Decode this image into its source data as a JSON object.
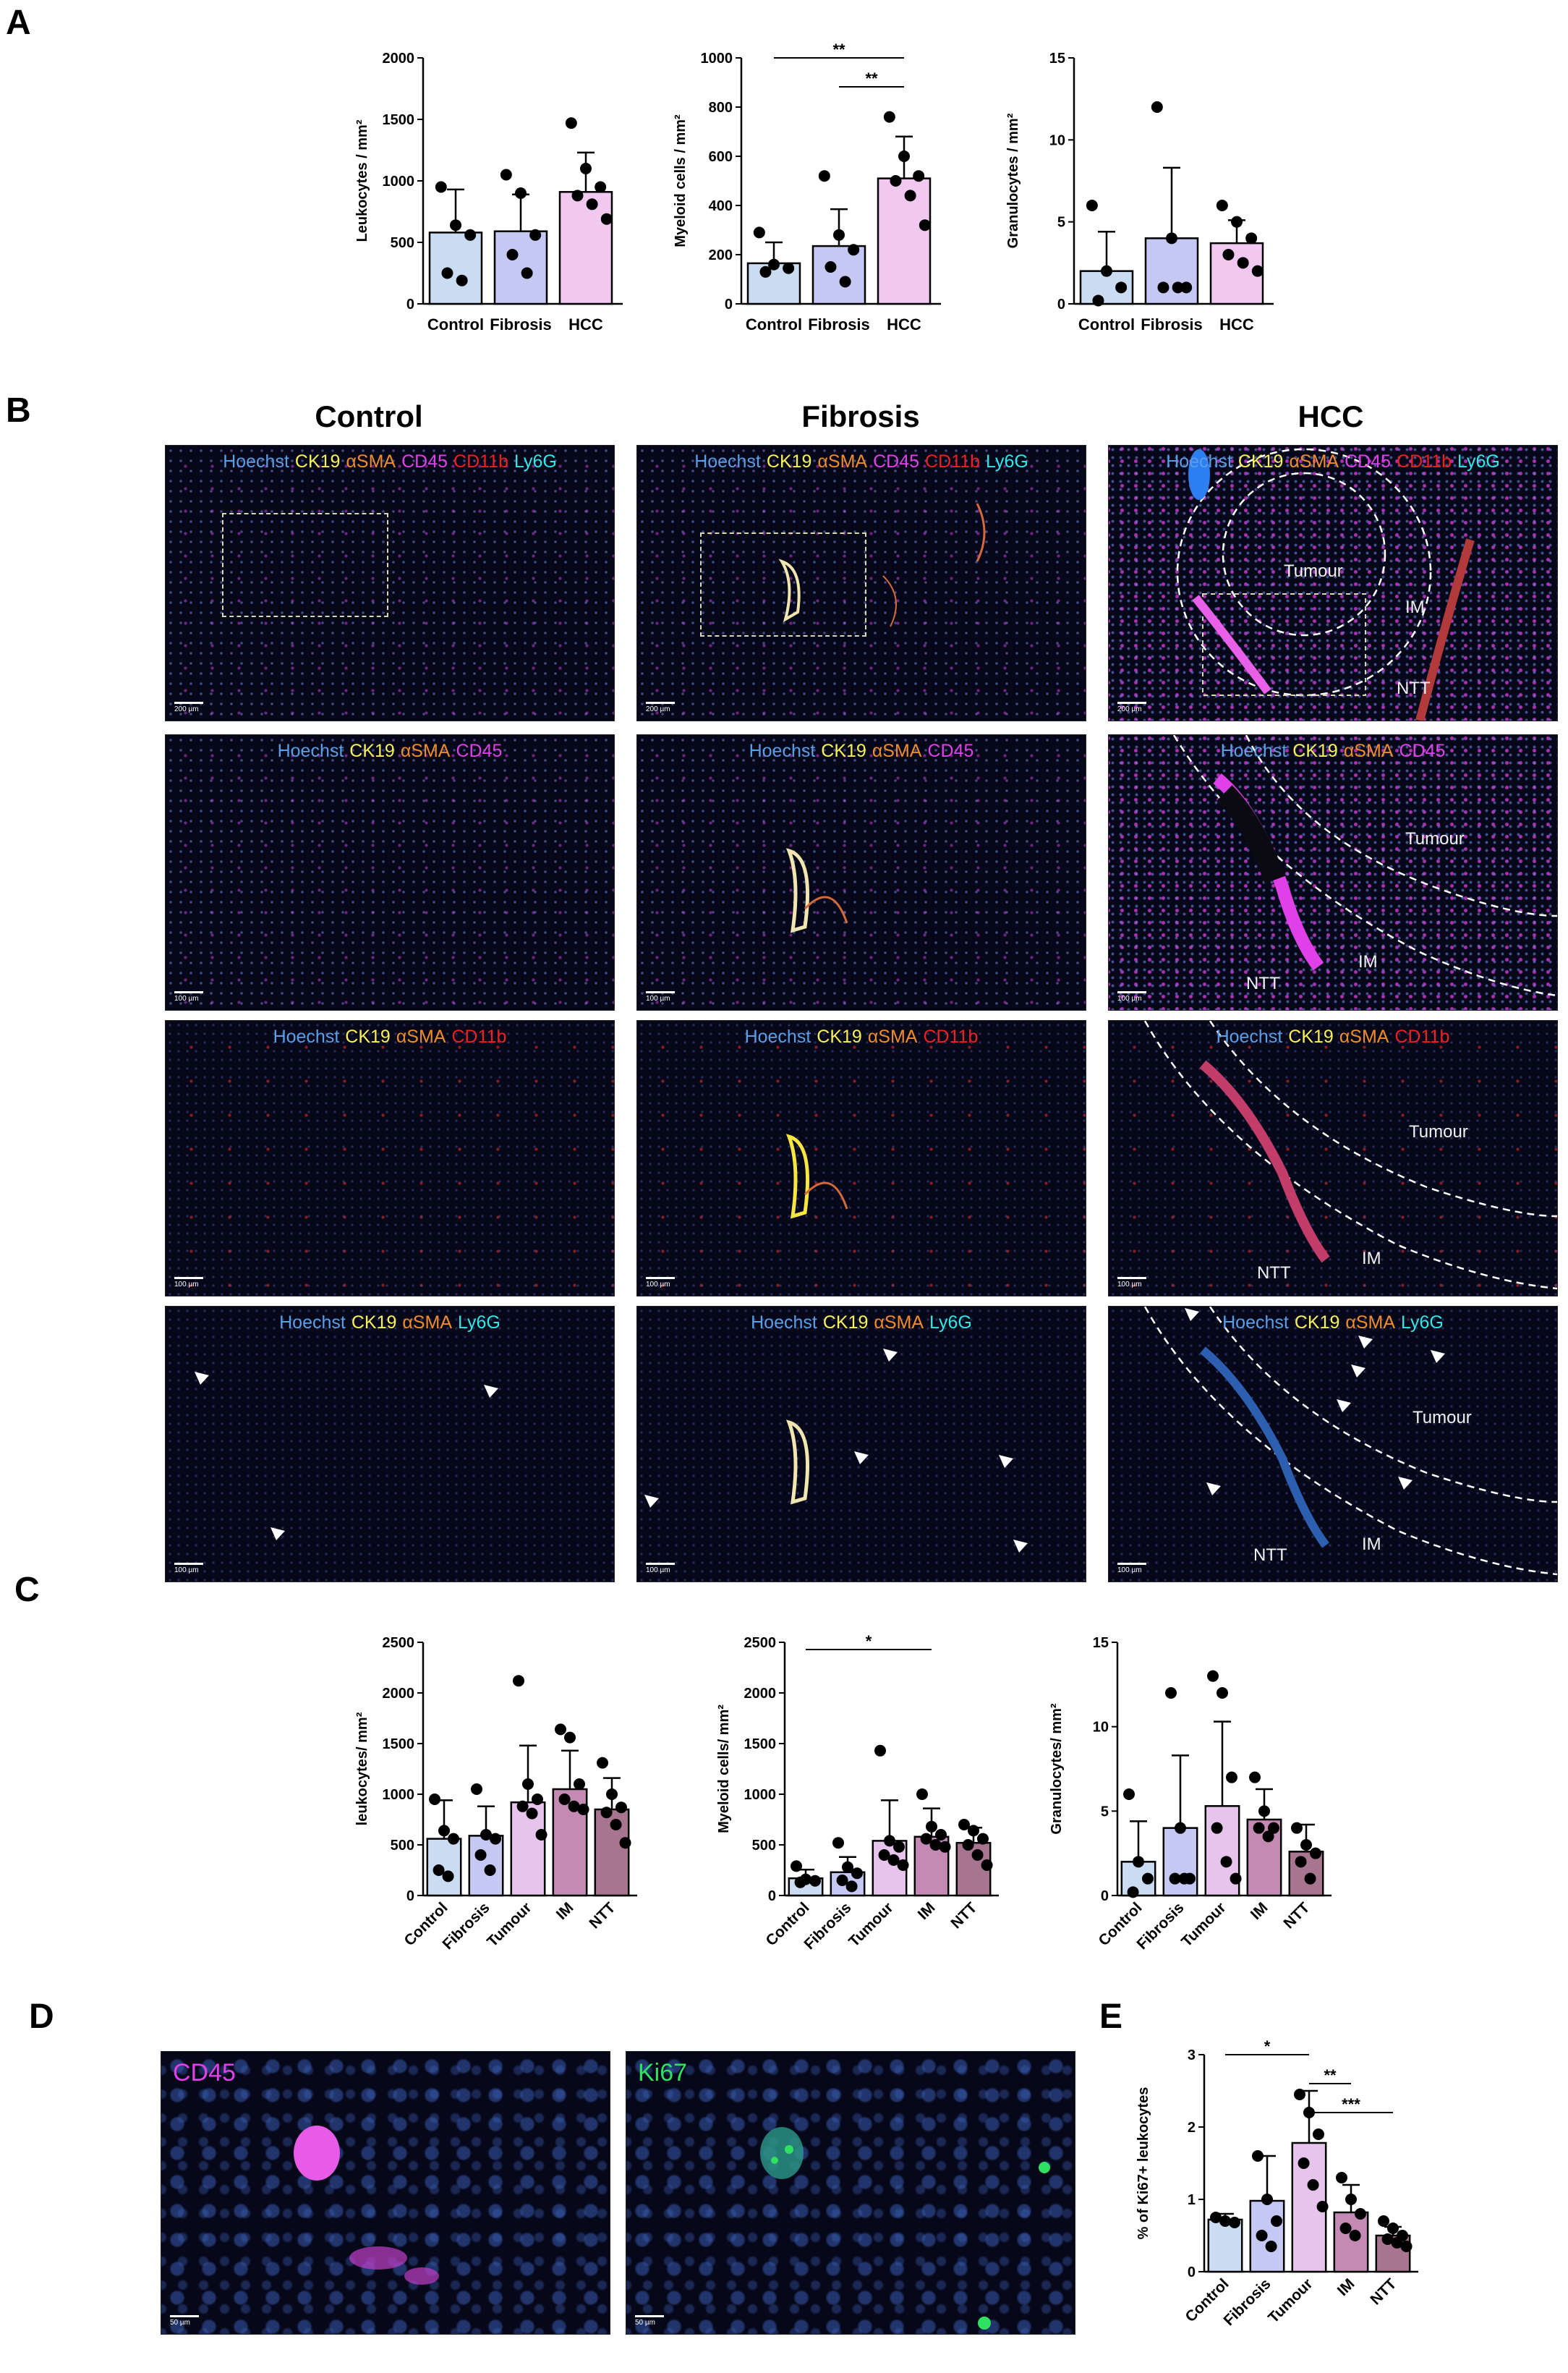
{
  "colors": {
    "hoechst": "#5a9ee6",
    "ck19": "#f7f25a",
    "asma": "#f08c2a",
    "cd45": "#e040e8",
    "cd11b": "#ee2020",
    "ly6g": "#30e8e8",
    "ki67": "#30e060",
    "control_fill": "#c9dcf2",
    "fibrosis_fill": "#c4c8f2",
    "hcc_fill": "#f0c8f0",
    "tumour_fill": "#e6c4ec",
    "im_fill": "#c48ab4",
    "ntt_fill": "#a87590"
  },
  "panels": {
    "a": "A",
    "b": "B",
    "c": "C",
    "d": "D",
    "e": "E"
  },
  "columns": {
    "control": "Control",
    "fibrosis": "Fibrosis",
    "hcc": "HCC"
  },
  "channels": {
    "hoechst": "Hoechst",
    "ck19": "CK19",
    "asma": "αSMA",
    "cd45": "CD45",
    "cd11b": "CD11b",
    "ly6g": "Ly6G",
    "ki67": "Ki67"
  },
  "regions": {
    "tumour": "Tumour",
    "im": "IM",
    "ntt": "NTT"
  },
  "scalebars": {
    "s200": "200 µm",
    "s100": "100 µm",
    "s50": "50 µm"
  },
  "chart_data": [
    {
      "id": "A1",
      "type": "bar",
      "ylabel": "Leukocytes / mm²",
      "categories": [
        "Control",
        "Fibrosis",
        "HCC"
      ],
      "values": [
        580,
        590,
        910
      ],
      "errors": [
        350,
        300,
        320
      ],
      "points": [
        [
          950,
          640,
          560,
          250,
          190
        ],
        [
          1050,
          900,
          560,
          400,
          250
        ],
        [
          1470,
          1100,
          950,
          880,
          810,
          690
        ]
      ],
      "yticks": [
        0,
        500,
        1000,
        1500,
        2000
      ],
      "ylim": [
        0,
        2000
      ],
      "sig": []
    },
    {
      "id": "A2",
      "type": "bar",
      "ylabel": "Myeloid cells / mm²",
      "categories": [
        "Control",
        "Fibrosis",
        "HCC"
      ],
      "values": [
        165,
        235,
        510
      ],
      "errors": [
        85,
        150,
        170
      ],
      "points": [
        [
          290,
          160,
          145,
          130
        ],
        [
          520,
          280,
          220,
          150,
          90
        ],
        [
          760,
          600,
          520,
          500,
          440,
          320
        ]
      ],
      "yticks": [
        0,
        200,
        400,
        600,
        800,
        1000
      ],
      "ylim": [
        0,
        1000
      ],
      "sig": [
        {
          "from": 0,
          "to": 2,
          "label": "**"
        },
        {
          "from": 1,
          "to": 2,
          "label": "**"
        }
      ]
    },
    {
      "id": "A3",
      "type": "bar",
      "ylabel": "Granulocytes / mm²",
      "categories": [
        "Control",
        "Fibrosis",
        "HCC"
      ],
      "values": [
        2.0,
        4.0,
        3.7
      ],
      "errors": [
        2.4,
        4.3,
        1.4
      ],
      "points": [
        [
          6,
          2,
          1,
          0.2
        ],
        [
          12,
          4,
          1,
          1,
          1
        ],
        [
          6,
          5,
          4,
          3,
          2.5,
          2
        ]
      ],
      "yticks": [
        0,
        5,
        10,
        15
      ],
      "ylim": [
        0,
        15
      ],
      "sig": []
    },
    {
      "id": "C1",
      "type": "bar",
      "ylabel": "leukocytes/ mm²",
      "categories": [
        "Control",
        "Fibrosis",
        "Tumour",
        "IM",
        "NTT"
      ],
      "values": [
        560,
        590,
        920,
        1050,
        850
      ],
      "errors": [
        380,
        290,
        560,
        380,
        310
      ],
      "points": [
        [
          950,
          640,
          560,
          250,
          190
        ],
        [
          1050,
          600,
          560,
          400,
          250
        ],
        [
          2120,
          1100,
          950,
          880,
          810,
          600
        ],
        [
          1640,
          1560,
          1100,
          950,
          880,
          850
        ],
        [
          1310,
          1000,
          870,
          820,
          700,
          520
        ]
      ],
      "yticks": [
        0,
        500,
        1000,
        1500,
        2000,
        2500
      ],
      "ylim": [
        0,
        2500
      ],
      "sig": []
    },
    {
      "id": "C2",
      "type": "bar",
      "ylabel": "Myeloid cells/ mm²",
      "categories": [
        "Control",
        "Fibrosis",
        "Tumour",
        "IM",
        "NTT"
      ],
      "values": [
        170,
        230,
        540,
        580,
        520
      ],
      "errors": [
        85,
        150,
        400,
        280,
        150
      ],
      "points": [
        [
          290,
          160,
          145,
          130
        ],
        [
          520,
          280,
          220,
          150,
          90
        ],
        [
          1430,
          540,
          480,
          400,
          350,
          300
        ],
        [
          1000,
          680,
          600,
          560,
          500,
          480
        ],
        [
          700,
          640,
          560,
          500,
          400,
          300
        ]
      ],
      "yticks": [
        0,
        500,
        1000,
        1500,
        2000,
        2500
      ],
      "ylim": [
        0,
        2500
      ],
      "sig": [
        {
          "from": 0,
          "to": 3,
          "label": "*"
        }
      ]
    },
    {
      "id": "C3",
      "type": "bar",
      "ylabel": "Granulocytes/ mm²",
      "categories": [
        "Control",
        "Fibrosis",
        "Tumour",
        "IM",
        "NTT"
      ],
      "values": [
        2.0,
        4.0,
        5.3,
        4.5,
        2.6
      ],
      "errors": [
        2.4,
        4.3,
        5.0,
        1.8,
        1.6
      ],
      "points": [
        [
          6,
          2,
          1,
          0.2
        ],
        [
          12,
          4,
          1,
          1,
          1
        ],
        [
          13,
          12,
          7,
          4,
          2,
          1
        ],
        [
          7,
          5,
          4,
          4,
          3.5
        ],
        [
          4,
          3,
          2.5,
          2,
          1
        ]
      ],
      "yticks": [
        0,
        5,
        10,
        15
      ],
      "ylim": [
        0,
        15
      ],
      "sig": []
    },
    {
      "id": "E1",
      "type": "bar",
      "ylabel": "% of Ki67+ leukocytes",
      "categories": [
        "Control",
        "Fibrosis",
        "Tumour",
        "IM",
        "NTT"
      ],
      "values": [
        0.72,
        0.98,
        1.78,
        0.82,
        0.5
      ],
      "errors": [
        0.08,
        0.62,
        0.72,
        0.38,
        0.12
      ],
      "points": [
        [
          0.75,
          0.7,
          0.68
        ],
        [
          1.6,
          1.0,
          0.7,
          0.5,
          0.35
        ],
        [
          2.45,
          2.2,
          1.9,
          1.5,
          1.2,
          0.9
        ],
        [
          1.3,
          1.0,
          0.8,
          0.6,
          0.5
        ],
        [
          0.7,
          0.6,
          0.5,
          0.45,
          0.4,
          0.35
        ]
      ],
      "yticks": [
        0,
        1,
        2,
        3
      ],
      "ylim": [
        0,
        3
      ],
      "sig": [
        {
          "from": 0,
          "to": 2,
          "label": "*"
        },
        {
          "from": 2,
          "to": 3,
          "label": "**"
        },
        {
          "from": 2,
          "to": 4,
          "label": "***"
        }
      ]
    }
  ]
}
